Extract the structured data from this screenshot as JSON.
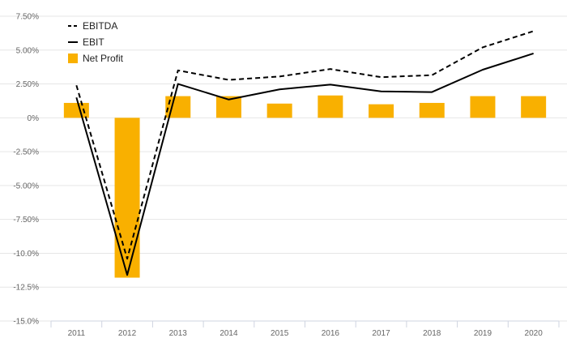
{
  "chart_data": {
    "type": "bar+line",
    "categories": [
      "2011",
      "2012",
      "2013",
      "2014",
      "2015",
      "2016",
      "2017",
      "2018",
      "2019",
      "2020"
    ],
    "series": [
      {
        "name": "Net Profit",
        "kind": "bar",
        "values": [
          1.1,
          -11.8,
          1.6,
          1.6,
          1.05,
          1.65,
          1.0,
          1.1,
          1.6,
          1.6
        ]
      },
      {
        "name": "EBITDA",
        "kind": "line",
        "style": "dashed",
        "values": [
          2.4,
          -10.4,
          3.5,
          2.8,
          3.05,
          3.6,
          3.0,
          3.15,
          5.2,
          6.4
        ]
      },
      {
        "name": "EBIT",
        "kind": "line",
        "style": "solid",
        "values": [
          1.5,
          -11.6,
          2.5,
          1.35,
          2.1,
          2.45,
          1.95,
          1.9,
          3.55,
          4.75
        ]
      }
    ],
    "ylim": [
      -15,
      7.5
    ],
    "yticks": [
      7.5,
      5.0,
      2.5,
      0,
      -2.5,
      -5.0,
      -7.5,
      -10.0,
      -12.5,
      -15.0
    ],
    "ytick_labels": [
      "7.50%",
      "5.00%",
      "2.50%",
      "0%",
      "-2.50%",
      "-5.00%",
      "-7.50%",
      "-10.0%",
      "-12.5%",
      "-15.0%"
    ],
    "grid": true,
    "legend": {
      "position": "top-left",
      "items": [
        {
          "label": "EBITDA",
          "symbol": "dashed-line"
        },
        {
          "label": "EBIT",
          "symbol": "solid-line"
        },
        {
          "label": "Net Profit",
          "symbol": "bar"
        }
      ]
    },
    "colors": {
      "bar": "#f9b000",
      "line": "#000000",
      "grid": "#e6e6e6",
      "text": "#666666"
    }
  }
}
